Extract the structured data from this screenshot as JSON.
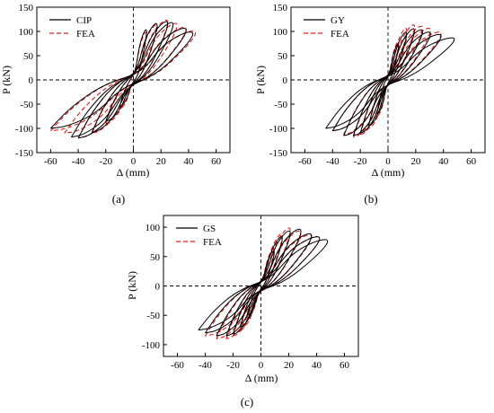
{
  "figure": {
    "panels": [
      {
        "label": "(a)",
        "legend": [
          "CIP",
          "FEA"
        ],
        "chart_data": {
          "type": "line",
          "title": "",
          "xlabel": "Δ (mm)",
          "ylabel": "P (kN)",
          "xlim": [
            -70,
            70
          ],
          "ylim": [
            -150,
            150
          ],
          "xticks": [
            -60,
            -40,
            -20,
            0,
            20,
            40,
            60
          ],
          "yticks": [
            -150,
            -100,
            -50,
            0,
            50,
            100,
            150
          ],
          "grid": false,
          "legend_position": "top-left",
          "series": [
            {
              "name": "CIP",
              "style": "solid",
              "color": "#000000",
              "loops": [
                [
                  10,
                  105
                ],
                [
                  18,
                  118
                ],
                [
                  26,
                  122
                ],
                [
                  30,
                  120
                ],
                [
                  40,
                  108
                ],
                [
                  45,
                  100
                ],
                [
                  58,
                  95
                ]
              ],
              "neg_peaks": [
                [
                  -10,
                  -55
                ],
                [
                  -20,
                  -85
                ],
                [
                  -30,
                  -108
                ],
                [
                  -40,
                  -120
                ],
                [
                  -45,
                  -118
                ],
                [
                  -60,
                  -100
                ]
              ]
            },
            {
              "name": "FEA",
              "style": "dashed",
              "color": "#d62020",
              "loops": [
                [
                  10,
                  100
                ],
                [
                  18,
                  115
                ],
                [
                  26,
                  125
                ],
                [
                  33,
                  118
                ],
                [
                  40,
                  110
                ],
                [
                  47,
                  102
                ],
                [
                  55,
                  95
                ]
              ],
              "neg_peaks": [
                [
                  -10,
                  -60
                ],
                [
                  -20,
                  -90
                ],
                [
                  -30,
                  -110
                ],
                [
                  -40,
                  -120
                ],
                [
                  -50,
                  -110
                ],
                [
                  -60,
                  -105
                ]
              ]
            }
          ]
        }
      },
      {
        "label": "(b)",
        "legend": [
          "GY",
          "FEA"
        ],
        "chart_data": {
          "type": "line",
          "title": "",
          "xlabel": "Δ (mm)",
          "ylabel": "P (kN)",
          "xlim": [
            -70,
            70
          ],
          "ylim": [
            -150,
            150
          ],
          "xticks": [
            -60,
            -40,
            -20,
            0,
            20,
            40,
            60
          ],
          "yticks": [
            -150,
            -100,
            -50,
            0,
            50,
            100,
            150
          ],
          "grid": false,
          "legend_position": "top-left",
          "series": [
            {
              "name": "GY",
              "style": "solid",
              "color": "#000000",
              "loops": [
                [
                  8,
                  75
                ],
                [
                  14,
                  100
                ],
                [
                  20,
                  107
                ],
                [
                  26,
                  105
                ],
                [
                  32,
                  100
                ],
                [
                  40,
                  95
                ],
                [
                  50,
                  88
                ]
              ],
              "neg_peaks": [
                [
                  -8,
                  -70
                ],
                [
                  -14,
                  -95
                ],
                [
                  -20,
                  -110
                ],
                [
                  -25,
                  -115
                ],
                [
                  -32,
                  -115
                ],
                [
                  -40,
                  -105
                ],
                [
                  -45,
                  -100
                ]
              ]
            },
            {
              "name": "FEA",
              "style": "dashed",
              "color": "#d62020",
              "loops": [
                [
                  8,
                  80
                ],
                [
                  14,
                  108
                ],
                [
                  20,
                  115
                ],
                [
                  26,
                  112
                ],
                [
                  32,
                  108
                ],
                [
                  40,
                  100
                ],
                [
                  48,
                  90
                ]
              ],
              "neg_peaks": [
                [
                  -8,
                  -75
                ],
                [
                  -14,
                  -100
                ],
                [
                  -20,
                  -113
                ],
                [
                  -25,
                  -118
                ],
                [
                  -32,
                  -113
                ],
                [
                  -40,
                  -105
                ]
              ]
            }
          ]
        }
      },
      {
        "label": "(c)",
        "legend": [
          "GS",
          "FEA"
        ],
        "chart_data": {
          "type": "line",
          "title": "",
          "xlabel": "Δ (mm)",
          "ylabel": "P (kN)",
          "xlim": [
            -70,
            70
          ],
          "ylim": [
            -120,
            120
          ],
          "xticks": [
            -60,
            -40,
            -20,
            0,
            20,
            40,
            60
          ],
          "yticks": [
            -100,
            -50,
            0,
            50,
            100
          ],
          "grid": false,
          "legend_position": "top-left",
          "series": [
            {
              "name": "GS",
              "style": "solid",
              "color": "#000000",
              "loops": [
                [
                  10,
                  60
                ],
                [
                  16,
                  85
                ],
                [
                  22,
                  95
                ],
                [
                  30,
                  98
                ],
                [
                  38,
                  90
                ],
                [
                  44,
                  85
                ],
                [
                  50,
                  80
                ]
              ],
              "neg_peaks": [
                [
                  -10,
                  -50
                ],
                [
                  -15,
                  -70
                ],
                [
                  -20,
                  -82
                ],
                [
                  -25,
                  -85
                ],
                [
                  -32,
                  -85
                ],
                [
                  -40,
                  -80
                ],
                [
                  -45,
                  -75
                ]
              ]
            },
            {
              "name": "FEA",
              "style": "dashed",
              "color": "#d62020",
              "loops": [
                [
                  10,
                  65
                ],
                [
                  16,
                  90
                ],
                [
                  22,
                  100
                ],
                [
                  30,
                  95
                ],
                [
                  38,
                  88
                ],
                [
                  44,
                  85
                ]
              ],
              "neg_peaks": [
                [
                  -10,
                  -55
                ],
                [
                  -15,
                  -75
                ],
                [
                  -20,
                  -85
                ],
                [
                  -25,
                  -90
                ],
                [
                  -32,
                  -90
                ],
                [
                  -40,
                  -85
                ]
              ]
            }
          ]
        }
      }
    ]
  }
}
